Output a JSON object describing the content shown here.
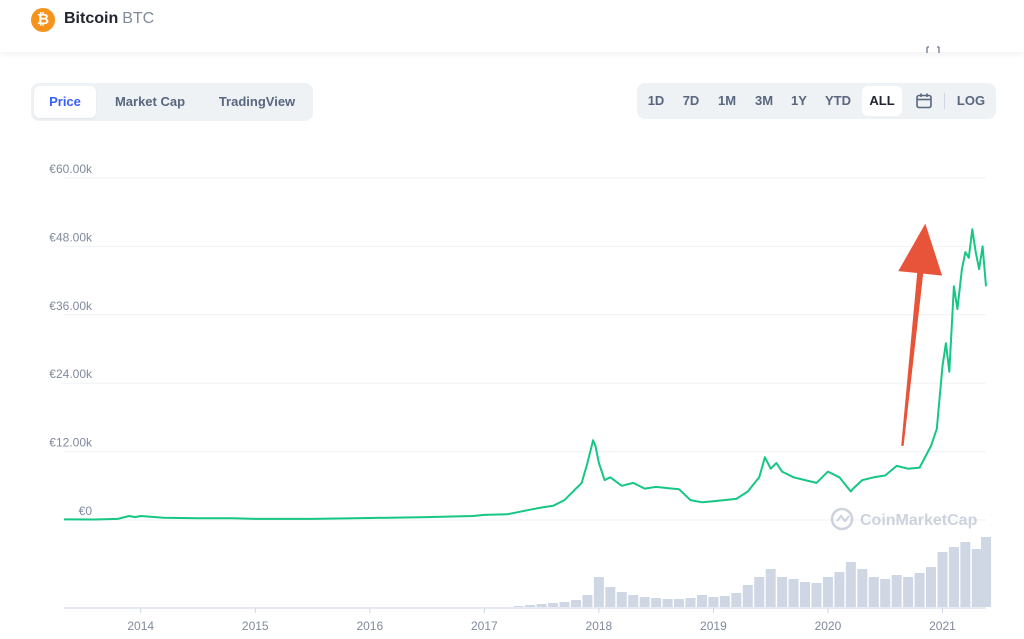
{
  "coin": {
    "name": "Bitcoin",
    "symbol": "BTC"
  },
  "tabs": [
    {
      "label": "Price",
      "active": true
    },
    {
      "label": "Market Cap",
      "active": false
    },
    {
      "label": "TradingView",
      "active": false
    }
  ],
  "ranges": [
    {
      "label": "1D",
      "active": false
    },
    {
      "label": "7D",
      "active": false
    },
    {
      "label": "1M",
      "active": false
    },
    {
      "label": "3M",
      "active": false
    },
    {
      "label": "1Y",
      "active": false
    },
    {
      "label": "YTD",
      "active": false
    },
    {
      "label": "ALL",
      "active": true
    }
  ],
  "log_label": "LOG",
  "watermark": "CoinMarketCap",
  "colors": {
    "line": "#16c784",
    "volume": "#cfd6e4",
    "accent": "#3861fb",
    "arrow": "#e8543a",
    "logo": "#f7931a"
  },
  "chart_data": {
    "type": "line",
    "y_ticks": [
      {
        "value": 0,
        "label": "€0"
      },
      {
        "value": 12000,
        "label": "€12.00k"
      },
      {
        "value": 24000,
        "label": "€24.00k"
      },
      {
        "value": 36000,
        "label": "€36.00k"
      },
      {
        "value": 48000,
        "label": "€48.00k"
      },
      {
        "value": 60000,
        "label": "€60.00k"
      }
    ],
    "x_ticks": [
      "2014",
      "2015",
      "2016",
      "2017",
      "2018",
      "2019",
      "2020",
      "2021"
    ],
    "xlim": [
      2013.33,
      2021.38
    ],
    "ylim": [
      0,
      60000
    ],
    "series": [
      {
        "x": [
          2013.33,
          2013.6,
          2013.8,
          2013.9,
          2013.95,
          2014.0,
          2014.2,
          2014.5,
          2014.8,
          2015.0,
          2015.5,
          2016.0,
          2016.5,
          2016.9,
          2017.0,
          2017.2,
          2017.4,
          2017.5,
          2017.6,
          2017.7,
          2017.8,
          2017.85,
          2017.9,
          2017.95,
          2017.97,
          2018.0,
          2018.05,
          2018.1,
          2018.2,
          2018.3,
          2018.4,
          2018.5,
          2018.6,
          2018.7,
          2018.8,
          2018.9,
          2018.95,
          2019.0,
          2019.2,
          2019.3,
          2019.4,
          2019.45,
          2019.5,
          2019.55,
          2019.6,
          2019.7,
          2019.8,
          2019.9,
          2020.0,
          2020.1,
          2020.2,
          2020.22,
          2020.3,
          2020.4,
          2020.5,
          2020.6,
          2020.7,
          2020.8,
          2020.9,
          2020.95,
          2021.0,
          2021.03,
          2021.06,
          2021.1,
          2021.13,
          2021.17,
          2021.2,
          2021.23,
          2021.26,
          2021.29,
          2021.32,
          2021.35,
          2021.38
        ],
        "y": [
          100,
          80,
          200,
          700,
          500,
          700,
          400,
          300,
          300,
          200,
          200,
          350,
          500,
          700,
          900,
          1000,
          1800,
          2200,
          2500,
          3500,
          5500,
          6500,
          10000,
          14000,
          13000,
          10000,
          7000,
          7500,
          6000,
          6500,
          5500,
          5800,
          5600,
          5400,
          3500,
          3100,
          3200,
          3300,
          3700,
          5000,
          7500,
          11000,
          9000,
          10000,
          8500,
          7500,
          7000,
          6500,
          8500,
          7500,
          5000,
          5500,
          7000,
          7500,
          7800,
          9500,
          9000,
          9200,
          13000,
          16000,
          27000,
          31000,
          26000,
          41000,
          37000,
          44000,
          47000,
          46000,
          51000,
          47000,
          44000,
          48000,
          41000
        ]
      }
    ],
    "volume": {
      "x": [
        2017.3,
        2017.4,
        2017.5,
        2017.6,
        2017.7,
        2017.8,
        2017.9,
        2018.0,
        2018.1,
        2018.2,
        2018.3,
        2018.4,
        2018.5,
        2018.6,
        2018.7,
        2018.8,
        2018.9,
        2019.0,
        2019.1,
        2019.2,
        2019.3,
        2019.4,
        2019.5,
        2019.6,
        2019.7,
        2019.8,
        2019.9,
        2020.0,
        2020.1,
        2020.2,
        2020.3,
        2020.4,
        2020.5,
        2020.6,
        2020.7,
        2020.8,
        2020.9,
        2021.0,
        2021.1,
        2021.2,
        2021.3,
        2021.38
      ],
      "v": [
        1,
        2,
        3,
        4,
        5,
        7,
        12,
        30,
        20,
        15,
        12,
        10,
        9,
        8,
        8,
        9,
        12,
        10,
        11,
        14,
        22,
        30,
        38,
        30,
        28,
        25,
        24,
        30,
        35,
        45,
        38,
        30,
        28,
        32,
        30,
        34,
        40,
        55,
        60,
        65,
        58,
        70
      ]
    },
    "annotations": [
      {
        "type": "arrow",
        "from": [
          2020.65,
          13000
        ],
        "to": [
          2020.85,
          52000
        ]
      }
    ]
  }
}
